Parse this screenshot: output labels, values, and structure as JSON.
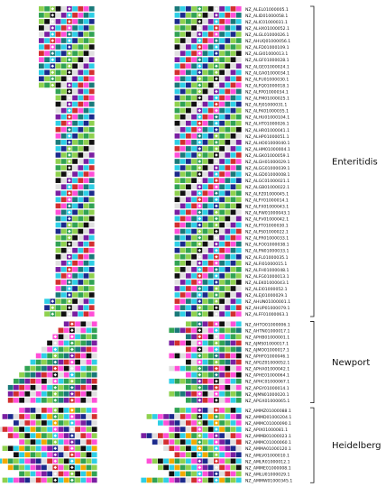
{
  "figure": {
    "groups": [
      {
        "name": "Enteritidis",
        "accessions": [
          "NZ_ALEL01000005.1",
          "NZ_ALID01000058.1",
          "NZ_ALIC01000031.1",
          "NZ_ALHX01000052.1",
          "NZ_ALGL01000026.1",
          "NZ_AHUQ01000056.1",
          "NZ_ALFD01000109.1",
          "NZ_ALGI01000013.1",
          "NZ_ALGF01000028.1",
          "NZ_ALGE01000024.1",
          "NZ_ALGA01000034.1",
          "NZ_ALFU01000030.1",
          "NZ_ALFQ01000018.1",
          "NZ_ALFP01000034.1",
          "NZ_ALFM01000025.1",
          "NZ_ALFJ01000031.1",
          "NZ_ALFK01000035.1",
          "NZ_ALHU01000104.1",
          "NZ_ALHT01000026.1",
          "NZ_ALHR01000041.1",
          "NZ_ALHP01000051.1",
          "NZ_ALHO01000040.1",
          "NZ_ALHM01000004.1",
          "NZ_ALGK01000059.1",
          "NZ_ALGH01000029.1",
          "NZ_ALGG01000039.1",
          "NZ_ALGD01000008.1",
          "NZ_ALGC01000021.1",
          "NZ_ALGB01000022.1",
          "NZ_ALFZ01000045.1",
          "NZ_ALFY01000014.1",
          "NZ_ALFX01000043.1",
          "NZ_ALFW01000043.1",
          "NZ_ALFV01000042.1",
          "NZ_ALFT01000030.1",
          "NZ_ALFS01000022.1",
          "NZ_ALFR01000033.1",
          "NZ_ALFO01000038.1",
          "NZ_ALFN01000033.1",
          "NZ_ALFL01000035.1",
          "NZ_ALFI01000015.1",
          "NZ_ALFH01000048.1",
          "NZ_ALFG01000013.1",
          "NZ_ALEK01000043.1",
          "NZ_ALEI01000052.1",
          "NZ_ALEJ01000029.1",
          "NZ_AHUN01000001.1",
          "NZ_AHUP01000079.1",
          "NZ_ALFF01000063.1"
        ]
      },
      {
        "name": "Newport",
        "accessions": [
          "NZ_AHTO01000006.1",
          "NZ_AHTN01000017.1",
          "NZ_APHB01000001.1",
          "NZ_AJMS01000017.1",
          "NZ_AJMO01000017.1",
          "NZ_APHF01000046.1",
          "NZ_APGZ01000052.1",
          "NZ_APHA01000042.1",
          "NZ_APHE01000064.1",
          "NZ_APHC01000067.1",
          "NZ_APGY01000014.1",
          "NZ_AJMN01000020.1",
          "NZ_APGX01000065.1"
        ]
      },
      {
        "name": "Heidelberg",
        "accessions": [
          "NZ_AMMZ01000088.1",
          "NZ_AMMD01000204.1",
          "NZ_AMMC01000090.1",
          "NZ_APIX01000081.1",
          "NZ_AMMB01000023.1",
          "NZ_AMMC01000060.1",
          "NZ_AMMA01000120.1",
          "NZ_AMLV01000010.1",
          "NZ_AMLR01000012.1",
          "NZ_AMME01000008.1",
          "NZ_AMLU01000029.1",
          "NZ_AMMW01000345.1"
        ]
      }
    ],
    "block_colors": [
      "#1a7a7a",
      "#2ecfe6",
      "#1c2a8c",
      "#8fd14f",
      "#31a354",
      "#111111",
      "#7a1fa2",
      "#e0e0e0",
      "#d32f2f",
      "#ff4fd8",
      "#f2a900",
      "#3fbf9f"
    ]
  }
}
